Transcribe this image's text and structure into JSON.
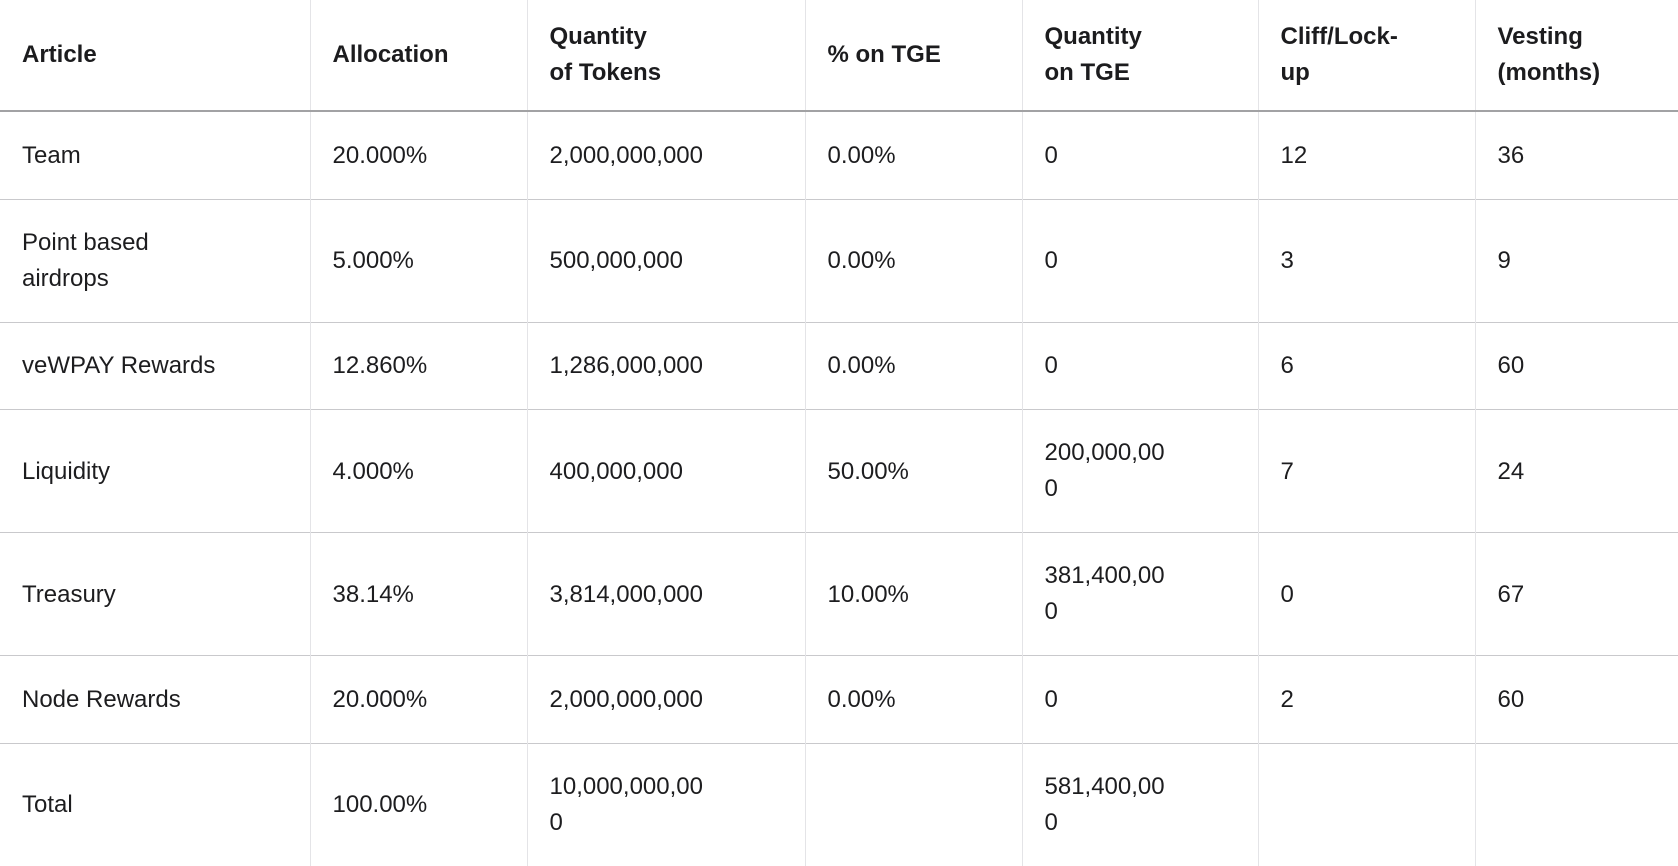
{
  "colors": {
    "background": "#ffffff",
    "text": "#1d1d1f",
    "header_border": "#a2a2a4",
    "row_border": "#c9c9cc",
    "column_border": "#e4e4e7"
  },
  "table": {
    "name": "token-allocation-table",
    "columns": [
      {
        "id": "article",
        "label": "Article"
      },
      {
        "id": "allocation",
        "label": "Allocation"
      },
      {
        "id": "quantity_of_tokens",
        "label": "Quantity\nof Tokens"
      },
      {
        "id": "pct_on_tge",
        "label": "% on TGE"
      },
      {
        "id": "quantity_on_tge",
        "label": "Quantity\non TGE"
      },
      {
        "id": "cliff_lockup",
        "label": "Cliff/Lock-\nup"
      },
      {
        "id": "vesting_months",
        "label": "Vesting\n(months)"
      }
    ],
    "rows": [
      {
        "article": "Team",
        "allocation": "20.000%",
        "quantity_of_tokens": "2,000,000,000",
        "pct_on_tge": "0.00%",
        "quantity_on_tge": "0",
        "cliff_lockup": "12",
        "vesting_months": "36"
      },
      {
        "article": "Point based airdrops",
        "allocation": "5.000%",
        "quantity_of_tokens": "500,000,000",
        "pct_on_tge": "0.00%",
        "quantity_on_tge": "0",
        "cliff_lockup": "3",
        "vesting_months": "9"
      },
      {
        "article": "veWPAY Rewards",
        "allocation": "12.860%",
        "quantity_of_tokens": "1,286,000,000",
        "pct_on_tge": "0.00%",
        "quantity_on_tge": "0",
        "cliff_lockup": "6",
        "vesting_months": "60"
      },
      {
        "article": "Liquidity",
        "allocation": "4.000%",
        "quantity_of_tokens": "400,000,000",
        "pct_on_tge": "50.00%",
        "quantity_on_tge": "200,000,000",
        "cliff_lockup": "7",
        "vesting_months": "24"
      },
      {
        "article": "Treasury",
        "allocation": "38.14%",
        "quantity_of_tokens": "3,814,000,000",
        "pct_on_tge": "10.00%",
        "quantity_on_tge": "381,400,000",
        "cliff_lockup": "0",
        "vesting_months": "67"
      },
      {
        "article": "Node Rewards",
        "allocation": "20.000%",
        "quantity_of_tokens": "2,000,000,000",
        "pct_on_tge": "0.00%",
        "quantity_on_tge": "0",
        "cliff_lockup": "2",
        "vesting_months": "60"
      },
      {
        "article": "Total",
        "allocation": "100.00%",
        "quantity_of_tokens": "10,000,000,000",
        "pct_on_tge": "",
        "quantity_on_tge": "581,400,000",
        "cliff_lockup": "",
        "vesting_months": ""
      }
    ]
  }
}
